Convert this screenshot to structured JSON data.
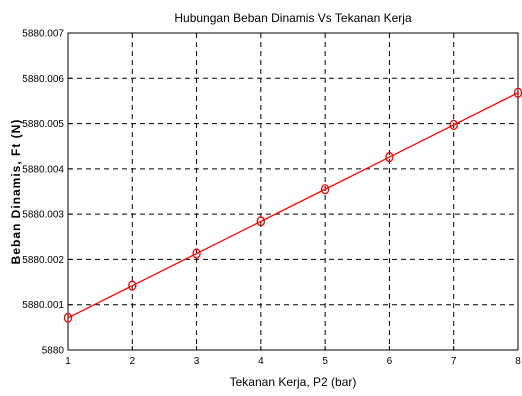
{
  "chart_data": {
    "type": "line",
    "title": "Hubungan Beban Dinamis Vs Tekanan Kerja",
    "xlabel": "Tekanan Kerja, P2 (bar)",
    "ylabel": "Beban Dinamis, Ft (N)",
    "x": [
      1,
      2,
      3,
      4,
      5,
      6,
      7,
      8
    ],
    "series": [
      {
        "values": [
          5880.00071,
          5880.00142,
          5880.00213,
          5880.00284,
          5880.00355,
          5880.00426,
          5880.00497,
          5880.00568
        ],
        "color": "#ff0000",
        "marker": "circle"
      }
    ],
    "xlim": [
      1,
      8
    ],
    "ylim": [
      5880,
      5880.007
    ],
    "xticks": [
      "1",
      "2",
      "3",
      "4",
      "5",
      "6",
      "7",
      "8"
    ],
    "yticks": [
      "5880",
      "5880.001",
      "5880.002",
      "5880.003",
      "5880.004",
      "5880.005",
      "5880.006",
      "5880.007"
    ],
    "grid": true,
    "grid_style": "dashed"
  }
}
